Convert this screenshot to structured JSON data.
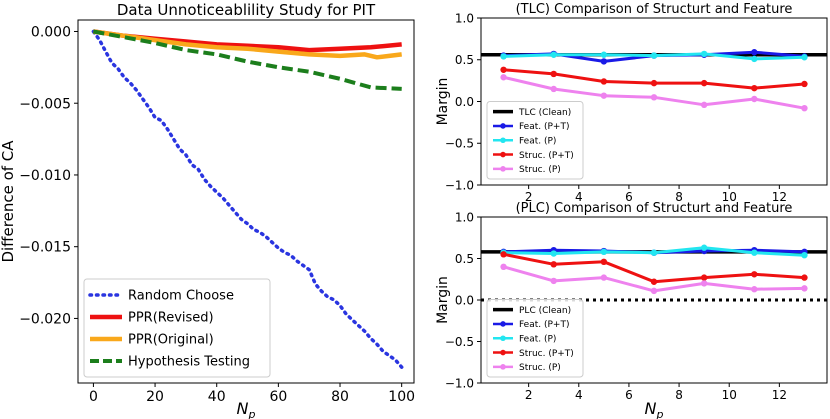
{
  "chart_data": [
    {
      "type": "line",
      "title": "Data Unnoticeablility Study for PIT",
      "xlabel": "N",
      "xlabel_sub": "p",
      "ylabel": "Difference of CA",
      "xlim": [
        -5,
        104
      ],
      "ylim": [
        -0.0245,
        0.0008
      ],
      "xticks": [
        0,
        20,
        40,
        60,
        80,
        100
      ],
      "yticks": [
        0.0,
        -0.005,
        -0.01,
        -0.015,
        -0.02
      ],
      "ytick_labels": [
        "0.000",
        "−0.005",
        "−0.010",
        "−0.015",
        "−0.020"
      ],
      "legend": "lower-left",
      "series": [
        {
          "name": "Random Choose",
          "color": "#2a35e0",
          "style": "dotted",
          "x": [
            0,
            2,
            4,
            6,
            8,
            10,
            12,
            14,
            16,
            18,
            20,
            22,
            24,
            26,
            28,
            30,
            32,
            34,
            36,
            38,
            40,
            42,
            44,
            46,
            48,
            50,
            52,
            54,
            56,
            58,
            60,
            62,
            64,
            66,
            68,
            70,
            72,
            74,
            76,
            78,
            80,
            82,
            84,
            86,
            88,
            90,
            92,
            94,
            96,
            98,
            100
          ],
          "y": [
            0,
            -0.0006,
            -0.0014,
            -0.0022,
            -0.0026,
            -0.0032,
            -0.0036,
            -0.0041,
            -0.0047,
            -0.0053,
            -0.006,
            -0.0062,
            -0.0068,
            -0.0075,
            -0.0082,
            -0.0086,
            -0.0093,
            -0.0096,
            -0.0103,
            -0.0108,
            -0.0112,
            -0.0116,
            -0.0121,
            -0.0126,
            -0.0131,
            -0.0134,
            -0.0138,
            -0.014,
            -0.0143,
            -0.0147,
            -0.0151,
            -0.0154,
            -0.0156,
            -0.016,
            -0.0163,
            -0.0166,
            -0.0176,
            -0.0181,
            -0.0185,
            -0.0187,
            -0.0191,
            -0.0197,
            -0.0201,
            -0.0205,
            -0.0209,
            -0.0214,
            -0.0218,
            -0.0223,
            -0.0226,
            -0.0229,
            -0.0234
          ]
        },
        {
          "name": "PPR(Revised)",
          "color": "#ee1111",
          "style": "solid",
          "x": [
            0,
            10,
            20,
            30,
            40,
            50,
            60,
            70,
            80,
            90,
            100
          ],
          "y": [
            0,
            -0.0003,
            -0.0005,
            -0.0007,
            -0.0009,
            -0.001,
            -0.0011,
            -0.0013,
            -0.0012,
            -0.0011,
            -0.0009
          ]
        },
        {
          "name": "PPR(Original)",
          "color": "#f9a81b",
          "style": "solid",
          "x": [
            0,
            10,
            20,
            30,
            40,
            50,
            60,
            70,
            80,
            88,
            92,
            96,
            100
          ],
          "y": [
            0,
            -0.0003,
            -0.0006,
            -0.0009,
            -0.0011,
            -0.0012,
            -0.0014,
            -0.0016,
            -0.0017,
            -0.0016,
            -0.0018,
            -0.0017,
            -0.0016
          ]
        },
        {
          "name": "Hypothesis Testing",
          "color": "#1c7e1c",
          "style": "dashed",
          "x": [
            0,
            10,
            20,
            30,
            40,
            50,
            60,
            70,
            80,
            90,
            100
          ],
          "y": [
            0,
            -0.0004,
            -0.0008,
            -0.0013,
            -0.0016,
            -0.0021,
            -0.0025,
            -0.0028,
            -0.0033,
            -0.0039,
            -0.004
          ]
        }
      ]
    },
    {
      "type": "line",
      "title": "(TLC) Comparison of Structurt and Feature",
      "xlabel": "",
      "ylabel": "Margin",
      "xlim": [
        0.1,
        13.9
      ],
      "ylim": [
        -1.0,
        1.0
      ],
      "xticks": [
        2,
        4,
        6,
        8,
        10,
        12
      ],
      "yticks": [
        -1.0,
        -0.5,
        0.0,
        0.5,
        1.0
      ],
      "ytick_labels": [
        "−1.0",
        "−0.5",
        "0.0",
        "0.5",
        "1.0"
      ],
      "legend": "lower-left",
      "series": [
        {
          "name": "TLC (Clean)",
          "color": "#000000",
          "style": "hline",
          "y": 0.56
        },
        {
          "name": "Feat. (P+T)",
          "color": "#1a1ae6",
          "style": "marker",
          "x": [
            1,
            3,
            5,
            7,
            9,
            11,
            13
          ],
          "y": [
            0.55,
            0.57,
            0.48,
            0.55,
            0.56,
            0.59,
            0.54
          ]
        },
        {
          "name": "Feat. (P)",
          "color": "#22e6f0",
          "style": "marker",
          "x": [
            1,
            3,
            5,
            7,
            9,
            11,
            13
          ],
          "y": [
            0.54,
            0.56,
            0.56,
            0.55,
            0.57,
            0.51,
            0.53
          ]
        },
        {
          "name": "Struc. (P+T)",
          "color": "#ee1111",
          "style": "marker",
          "x": [
            1,
            3,
            5,
            7,
            9,
            11,
            13
          ],
          "y": [
            0.38,
            0.33,
            0.24,
            0.22,
            0.22,
            0.16,
            0.21
          ]
        },
        {
          "name": "Struc. (P)",
          "color": "#ee82ee",
          "style": "marker",
          "x": [
            1,
            3,
            5,
            7,
            9,
            11,
            13
          ],
          "y": [
            0.29,
            0.15,
            0.07,
            0.05,
            -0.04,
            0.03,
            -0.08
          ]
        }
      ]
    },
    {
      "type": "line",
      "title": "(PLC) Comparison of Structurt and Feature",
      "xlabel": "N",
      "xlabel_sub": "p",
      "ylabel": "Margin",
      "xlim": [
        0.1,
        13.9
      ],
      "ylim": [
        -1.0,
        1.0
      ],
      "xticks": [
        2,
        4,
        6,
        8,
        10,
        12
      ],
      "yticks": [
        -1.0,
        -0.5,
        0.0,
        0.5,
        1.0
      ],
      "ytick_labels": [
        "−1.0",
        "−0.5",
        "0.0",
        "0.5",
        "1.0"
      ],
      "zero_line": true,
      "legend": "lower-left",
      "series": [
        {
          "name": "PLC (Clean)",
          "color": "#000000",
          "style": "hline",
          "y": 0.58
        },
        {
          "name": "Feat. (P+T)",
          "color": "#1a1ae6",
          "style": "marker",
          "x": [
            1,
            3,
            5,
            7,
            9,
            11,
            13
          ],
          "y": [
            0.58,
            0.6,
            0.59,
            0.57,
            0.59,
            0.6,
            0.58
          ]
        },
        {
          "name": "Feat. (P)",
          "color": "#22e6f0",
          "style": "marker",
          "x": [
            1,
            3,
            5,
            7,
            9,
            11,
            13
          ],
          "y": [
            0.57,
            0.56,
            0.58,
            0.57,
            0.63,
            0.57,
            0.54
          ]
        },
        {
          "name": "Struc. (P+T)",
          "color": "#ee1111",
          "style": "marker",
          "x": [
            1,
            3,
            5,
            7,
            9,
            11,
            13
          ],
          "y": [
            0.55,
            0.43,
            0.46,
            0.22,
            0.27,
            0.31,
            0.27
          ]
        },
        {
          "name": "Struc. (P)",
          "color": "#ee82ee",
          "style": "marker",
          "x": [
            1,
            3,
            5,
            7,
            9,
            11,
            13
          ],
          "y": [
            0.4,
            0.23,
            0.27,
            0.11,
            0.2,
            0.13,
            0.14
          ]
        }
      ]
    }
  ]
}
